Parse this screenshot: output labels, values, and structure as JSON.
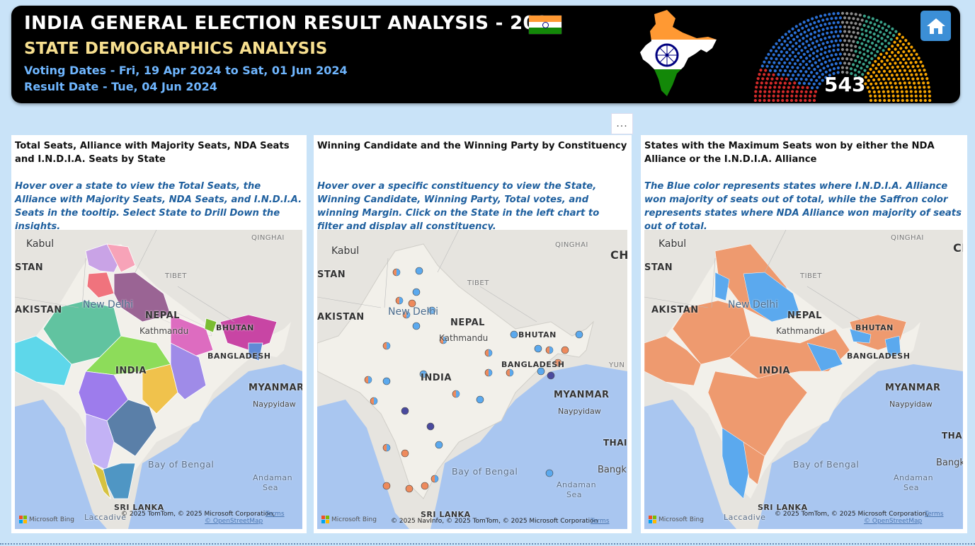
{
  "header": {
    "title": "INDIA GENERAL ELECTION RESULT ANALYSIS - 2024",
    "subtitle": "STATE DEMOGRAPHICS ANALYSIS",
    "voting_dates": "Voting Dates - Fri, 19 Apr 2024 to Sat, 01 Jun 2024",
    "result_date": "Result Date - Tue, 04 Jun 2024",
    "seat_total": "543",
    "home_icon": "home-icon",
    "flag_colors": [
      "#ff9933",
      "#ffffff",
      "#138808"
    ]
  },
  "more_options": "...",
  "panels": [
    {
      "title": "Total Seats, Alliance with Majority Seats, NDA Seats and I.N.D.I.A. Seats by State",
      "description": "Hover over a state to view the Total Seats, the Alliance with Majority Seats, NDA Seats, and I.N.D.I.A. Seats in the tooltip. Select State to Drill Down the insights.",
      "copyright": "© 2025 TomTom, © 2025 Microsoft Corporation,",
      "osm": "© OpenStreetMap",
      "terms": "Terms"
    },
    {
      "title": "Winning Candidate and the Winning Party by Constituency",
      "description": "Hover over a specific constituency to view the State, Winning Candidate, Winning Party, Total votes, and winning Margin. Click on the State in the left chart to filter and display all constituency.",
      "copyright": "© 2025 NavInfo, © 2025 TomTom, © 2025 Microsoft Corporation",
      "osm": "",
      "terms": "Terms"
    },
    {
      "title": "States with the Maximum Seats won by either the NDA Alliance or the I.N.D.I.A. Alliance",
      "description": "The Blue color represents states where I.N.D.I.A. Alliance won majority of seats out of total, while the Saffron color represents states where NDA Alliance won majority of seats out of total.",
      "copyright": "© 2025 TomTom, © 2025 Microsoft Corporation,",
      "osm": "© OpenStreetMap",
      "terms": "Terms"
    }
  ],
  "map_labels": {
    "kabul": "Kabul",
    "stan": "STAN",
    "kistan": "AKISTAN",
    "new_delhi": "New Delhi",
    "tibet": "TIBET",
    "qinghai": "QINGHAI",
    "nepal": "NEPAL",
    "kathmandu": "Kathmandu",
    "bhutan": "BHUTAN",
    "bangladesh": "BANGLADESH",
    "india": "INDIA",
    "myanmar": "MYANMAR",
    "naypyidaw": "Naypyidaw",
    "bay": "Bay of Bengal",
    "andaman": "Andaman",
    "sea": "Sea",
    "srilanka": "SRI LANKA",
    "laccadive": "Laccadive",
    "ch": "CH",
    "thai": "THAI",
    "bangk": "Bangk",
    "yun": "YUN",
    "bing": "Microsoft Bing"
  },
  "legend_colors": {
    "nda_saffron": "#ee9a6f",
    "india_blue": "#5ba9ee"
  }
}
